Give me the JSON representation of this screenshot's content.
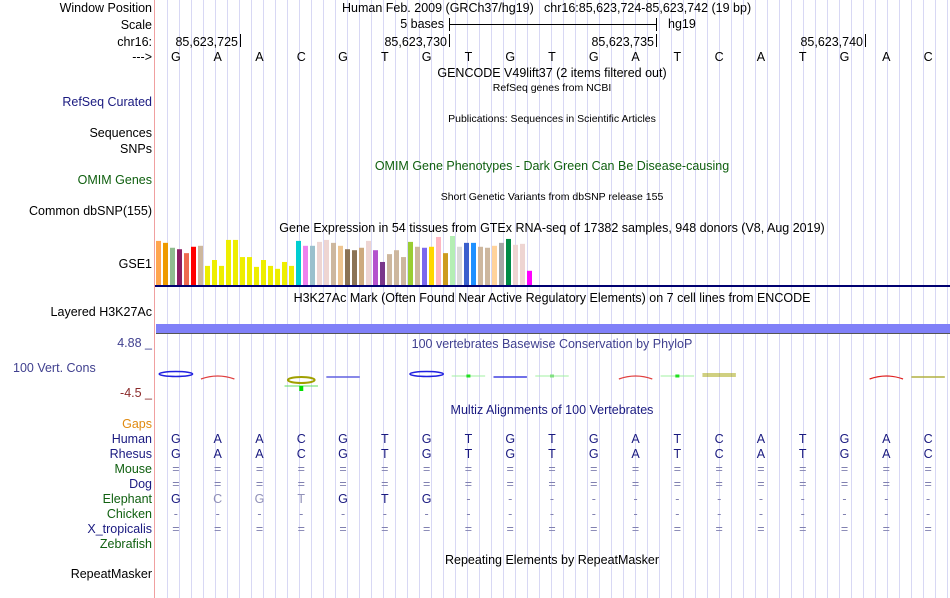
{
  "header": {
    "window_position_label": "Window Position",
    "assembly": "Human Feb. 2009 (GRCh37/hg19)",
    "position": "chr16:85,623,724-85,623,742 (19 bp)",
    "scale_label": "Scale",
    "scale_text": "5 bases",
    "scale_db": "hg19",
    "chrom_label": "chr16:",
    "position_ticks": [
      "85,623,725",
      "85,623,730",
      "85,623,735",
      "85,623,740"
    ],
    "strand_label": "--->"
  },
  "sequence": [
    "G",
    "A",
    "A",
    "C",
    "G",
    "T",
    "G",
    "T",
    "G",
    "T",
    "G",
    "A",
    "T",
    "C",
    "A",
    "T",
    "G",
    "A",
    "C"
  ],
  "tracks": {
    "gencode_title": "GENCODE V49lift37 (2 items filtered out)",
    "refseq_subtitle": "RefSeq genes from NCBI",
    "refseq_label": "RefSeq Curated",
    "publications_title": "Publications: Sequences in Scientific Articles",
    "sequences_label": "Sequences",
    "snps_label": "SNPs",
    "omim_title": "OMIM Gene Phenotypes - Dark Green Can Be Disease-causing",
    "omim_label": "OMIM Genes",
    "dbsnp_title": "Short Genetic Variants from dbSNP release 155",
    "dbsnp_label": "Common dbSNP(155)",
    "gtex_title": "Gene Expression in 54 tissues from GTEx RNA-seq of 17382 samples, 948 donors (V8, Aug 2019)",
    "gtex_label": "GSE1",
    "h3k27ac_title": "H3K27Ac Mark (Often Found Near Active Regulatory Elements) on 7 cell lines from ENCODE",
    "h3k27ac_label": "Layered H3K27Ac",
    "phylop_max": "4.88 _",
    "phylop_title": "100 vertebrates Basewise Conservation by PhyloP",
    "phylop_label": "100 Vert. Cons",
    "phylop_min": "-4.5 _",
    "multiz_title": "Multiz Alignments of 100 Vertebrates",
    "repeat_title": "Repeating Elements by RepeatMasker",
    "repeat_label": "RepeatMasker"
  },
  "gtex_bars": {
    "note": "relative expression (fraction of max bar)",
    "values": [
      0.9,
      0.86,
      0.76,
      0.73,
      0.65,
      0.78,
      0.8,
      0.39,
      0.51,
      0.39,
      0.92,
      0.92,
      0.57,
      0.57,
      0.37,
      0.51,
      0.39,
      0.33,
      0.47,
      0.39,
      0.9,
      0.8,
      0.8,
      0.88,
      0.92,
      0.86,
      0.8,
      0.73,
      0.71,
      0.76,
      0.9,
      0.71,
      0.47,
      0.63,
      0.71,
      0.57,
      0.88,
      0.78,
      0.76,
      0.78,
      0.98,
      0.65,
      1.0,
      0.78,
      0.86,
      0.86,
      0.78,
      0.76,
      0.8,
      0.86,
      0.94,
      0.82,
      0.84,
      0.29
    ],
    "colors": [
      "#ffa54f",
      "#ee9a00",
      "#8fbc8f",
      "#8b1c62",
      "#ee6a50",
      "#ff0000",
      "#cdb79e",
      "#eeee00",
      "#eeee00",
      "#eeee00",
      "#eeee00",
      "#eeee00",
      "#eeee00",
      "#eeee00",
      "#eeee00",
      "#eeee00",
      "#eeee00",
      "#eeee00",
      "#eeee00",
      "#eeee00",
      "#00ced1",
      "#ee82ee",
      "#9ac0cd",
      "#eed5d2",
      "#eed5d2",
      "#cdb79e",
      "#eec591",
      "#8b7355",
      "#8b7355",
      "#cdaa7d",
      "#eed5d2",
      "#b452cd",
      "#7a378b",
      "#cdb79e",
      "#cdb79e",
      "#cdb79e",
      "#9acd32",
      "#cdb79e",
      "#7b68ee",
      "#ffd700",
      "#ffb6c1",
      "#cd9b1d",
      "#b4eeb4",
      "#d9d9d9",
      "#3a5fcd",
      "#1e90ff",
      "#cdb79e",
      "#cdb79e",
      "#ffd39b",
      "#a6a6a6",
      "#008b45",
      "#eed5d2",
      "#eed5d2",
      "#ff00ff"
    ]
  },
  "phylop_marks": [
    {
      "base": 1,
      "kind": "oval",
      "color": "#2020e0"
    },
    {
      "base": 2,
      "kind": "arc",
      "color": "#e04040"
    },
    {
      "base": 4,
      "kind": "oval-stem",
      "color": "#a0a000"
    },
    {
      "base": 5,
      "kind": "line",
      "color": "#6060e0"
    },
    {
      "base": 7,
      "kind": "oval",
      "color": "#2020e0"
    },
    {
      "base": 8,
      "kind": "tick",
      "color": "#20e020"
    },
    {
      "base": 9,
      "kind": "line",
      "color": "#4040e0"
    },
    {
      "base": 10,
      "kind": "tick",
      "color": "#80e080"
    },
    {
      "base": 12,
      "kind": "arc",
      "color": "#e04040"
    },
    {
      "base": 13,
      "kind": "tick",
      "color": "#20e020"
    },
    {
      "base": 14,
      "kind": "line2",
      "color": "#a0a000"
    },
    {
      "base": 18,
      "kind": "arc",
      "color": "#e02020"
    },
    {
      "base": 19,
      "kind": "line",
      "color": "#b0b040"
    }
  ],
  "alignment": {
    "gaps_label": "Gaps",
    "species": [
      {
        "name": "Human",
        "color": "#1a1a80",
        "row": [
          "G",
          "A",
          "A",
          "C",
          "G",
          "T",
          "G",
          "T",
          "G",
          "T",
          "G",
          "A",
          "T",
          "C",
          "A",
          "T",
          "G",
          "A",
          "C"
        ]
      },
      {
        "name": "Rhesus",
        "color": "#1a1a80",
        "row": [
          "G",
          "A",
          "A",
          "C",
          "G",
          "T",
          "G",
          "T",
          "G",
          "T",
          "G",
          "A",
          "T",
          "C",
          "A",
          "T",
          "G",
          "A",
          "C"
        ]
      },
      {
        "name": "Mouse",
        "color": "#106010",
        "row": [
          "=",
          "=",
          "=",
          "=",
          "=",
          "=",
          "=",
          "=",
          "=",
          "=",
          "=",
          "=",
          "=",
          "=",
          "=",
          "=",
          "=",
          "=",
          "="
        ]
      },
      {
        "name": "Dog",
        "color": "#1a1a80",
        "row": [
          "=",
          "=",
          "=",
          "=",
          "=",
          "=",
          "=",
          "=",
          "=",
          "=",
          "=",
          "=",
          "=",
          "=",
          "=",
          "=",
          "=",
          "=",
          "="
        ]
      },
      {
        "name": "Elephant",
        "color": "#106010",
        "row": [
          "G",
          "C",
          "G",
          "T",
          "G",
          "T",
          "G",
          "-",
          "-",
          "-",
          "-",
          "-",
          "-",
          "-",
          "-",
          "-",
          "-",
          "-",
          "-"
        ],
        "faded": [
          2,
          3,
          4
        ]
      },
      {
        "name": "Chicken",
        "color": "#106010",
        "row": [
          "-",
          "-",
          "-",
          "-",
          "-",
          "-",
          "-",
          "-",
          "-",
          "-",
          "-",
          "-",
          "-",
          "-",
          "-",
          "-",
          "-",
          "-",
          "-"
        ]
      },
      {
        "name": "X_tropicalis",
        "color": "#1a1a80",
        "row": [
          "=",
          "=",
          "=",
          "=",
          "=",
          "=",
          "=",
          "=",
          "=",
          "=",
          "=",
          "=",
          "=",
          "=",
          "=",
          "=",
          "=",
          "=",
          "="
        ]
      },
      {
        "name": "Zebrafish",
        "color": "#106010",
        "row": []
      }
    ]
  }
}
